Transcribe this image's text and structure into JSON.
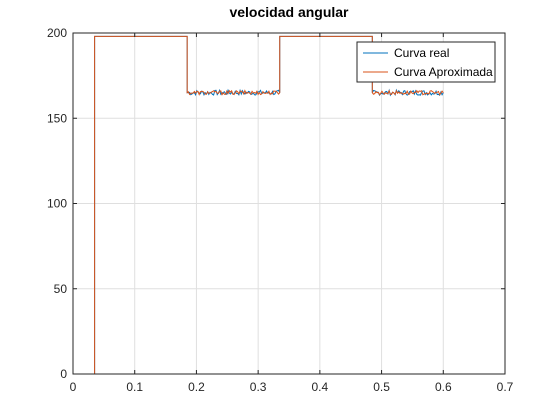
{
  "chart_data": {
    "type": "line",
    "title": "velocidad angular",
    "xlabel": "",
    "ylabel": "",
    "xlim": [
      0,
      0.7
    ],
    "ylim": [
      0,
      200
    ],
    "xticks": [
      0,
      0.1,
      0.2,
      0.3,
      0.4,
      0.5,
      0.6,
      0.7
    ],
    "yticks": [
      0,
      50,
      100,
      150,
      200
    ],
    "xtick_labels": [
      "0",
      "0.1",
      "0.2",
      "0.3",
      "0.4",
      "0.5",
      "0.6",
      "0.7"
    ],
    "ytick_labels": [
      "0",
      "50",
      "100",
      "150",
      "200"
    ],
    "grid": true,
    "legend_position": "top-right",
    "series": [
      {
        "name": "Curva real",
        "color": "#0072BD",
        "noise_amplitude": 1.5,
        "x": [
          0,
          0.035,
          0.035,
          0.185,
          0.185,
          0.335,
          0.335,
          0.485,
          0.485,
          0.6
        ],
        "y": [
          0,
          0,
          198,
          198,
          165,
          165,
          198,
          198,
          165,
          165
        ]
      },
      {
        "name": "Curva Aproximada",
        "color": "#D95319",
        "noise_amplitude": 1.2,
        "x": [
          0,
          0.035,
          0.035,
          0.185,
          0.185,
          0.335,
          0.335,
          0.485,
          0.485,
          0.6
        ],
        "y": [
          0,
          0,
          198,
          198,
          165,
          165,
          198,
          198,
          165,
          165
        ]
      }
    ]
  }
}
